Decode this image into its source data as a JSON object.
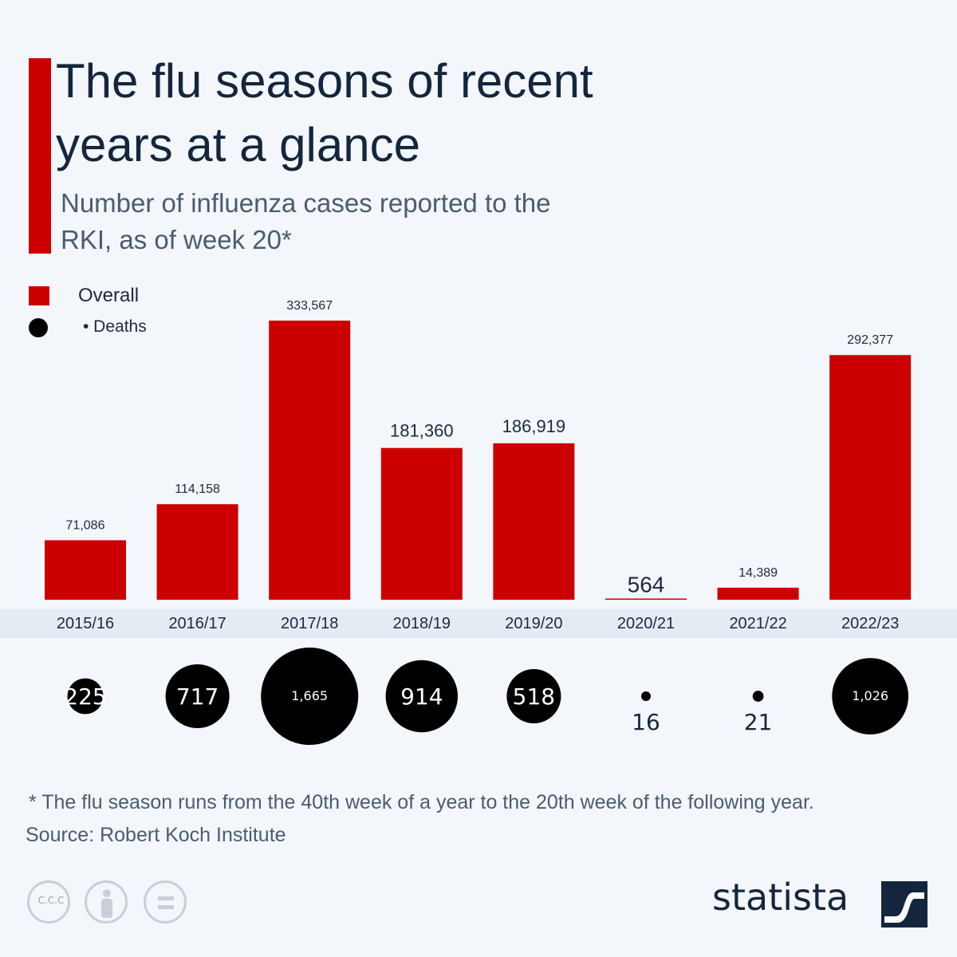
{
  "title": "The flu seasons of recent years at a glance",
  "subtitle": "Number of influenza cases reported to the RKI, as of week 20*",
  "legend": {
    "overall_label": "Overall",
    "deaths_label": "• Deaths"
  },
  "footnote": "* The flu season runs from the 40th week of a year to the 20th week of the following year.",
  "source": "Source: Robert Koch Institute",
  "license_badge": "C.C.C",
  "brand": "statista",
  "colors": {
    "bar": "#cc0000",
    "deaths_bubble": "#000000",
    "title": "#14263d",
    "text": "#4a5c72",
    "accent": "#cc0000"
  },
  "icons": [
    "cc-icon",
    "by-person-icon",
    "nd-equals-icon",
    "statista-logo-icon"
  ],
  "chart_data": {
    "type": "bar",
    "categories": [
      "2015/16",
      "2016/17",
      "2017/18",
      "2018/19",
      "2019/20",
      "2020/21",
      "2021/22",
      "2022/23"
    ],
    "series": [
      {
        "name": "Overall",
        "values": [
          71086,
          114158,
          333567,
          181360,
          186919,
          564,
          14389,
          292377
        ]
      },
      {
        "name": "Deaths",
        "values": [
          225,
          717,
          1665,
          914,
          518,
          16,
          21,
          1026
        ]
      }
    ],
    "value_labels": [
      "71,086",
      "114,158",
      "333,567",
      "181,360",
      "186,919",
      "564",
      "14,389",
      "292,377"
    ],
    "death_labels": [
      "225",
      "717",
      "1,665",
      "914",
      "518",
      "16",
      "21",
      "1,026"
    ],
    "ylim": [
      0,
      333567
    ],
    "grid": false,
    "legend_position": "top-left",
    "deaths_display": "bubbles below x-axis"
  }
}
